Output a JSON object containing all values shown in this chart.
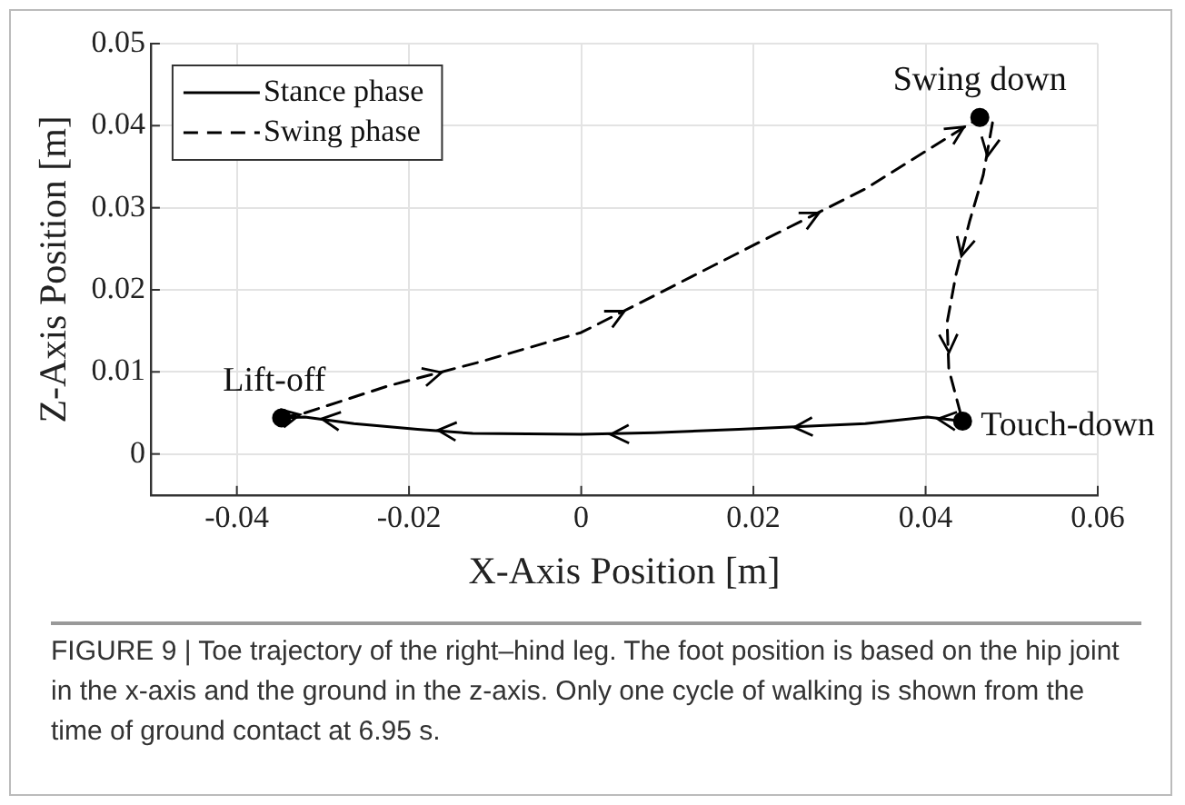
{
  "chart_data": {
    "type": "line",
    "xlabel": "X-Axis Position [m]",
    "ylabel": "Z-Axis Position [m]",
    "xlim": [
      -0.05,
      0.06
    ],
    "xticks": [
      -0.04,
      -0.02,
      0,
      0.02,
      0.04,
      0.06
    ],
    "ylim": [
      -0.005,
      0.05
    ],
    "yticks": [
      0,
      0.01,
      0.02,
      0.03,
      0.04,
      0.05
    ],
    "grid": true,
    "legend": "top left",
    "series": [
      {
        "name": "Stance phase",
        "color": "#000000",
        "line_style": "solid",
        "marker": "none",
        "x": [
          0.0443,
          0.0402,
          0.033,
          0.0183,
          0.0085,
          0,
          -0.0126,
          -0.019,
          -0.0264,
          -0.0321,
          -0.0348
        ],
        "values": [
          0.004,
          0.0045,
          0.0037,
          0.003,
          0.0026,
          0.0024,
          0.0025,
          0.003,
          0.0037,
          0.0045,
          0.0044
        ]
      },
      {
        "name": "Swing phase",
        "color": "#000000",
        "line_style": "dashed",
        "marker": "none",
        "x": [
          -0.0348,
          -0.0321,
          -0.0224,
          -0.0118,
          0,
          0.0085,
          0.0207,
          0.033,
          0.0411,
          0.0463,
          0.0478,
          0.0467,
          0.0451,
          0.0435,
          0.0425,
          0.0427,
          0.0443
        ],
        "values": [
          0.0044,
          0.005,
          0.0083,
          0.0112,
          0.0148,
          0.0193,
          0.0258,
          0.0323,
          0.0376,
          0.041,
          0.0405,
          0.034,
          0.0283,
          0.0217,
          0.016,
          0.0103,
          0.004
        ]
      },
      {
        "type": "scatter",
        "color": "#000000",
        "marker": "circle",
        "x": [
          -0.0348,
          0.0463,
          0.0443
        ],
        "values": [
          0.0044,
          0.041,
          0.004
        ]
      }
    ],
    "annotations": [
      {
        "text": "Lift-off",
        "x": -0.0348,
        "y": 0.0044
      },
      {
        "text": "Swing down",
        "x": 0.0463,
        "y": 0.041
      },
      {
        "text": "Touch-down",
        "x": 0.0443,
        "y": 0.004
      },
      "FIGURE 9 | Toe trajectory of the right–hind leg. The foot position is based on the hip joint in the x-axis and the ground in the z-axis. Only one cycle of walking is shown from the time of ground contact at 6.95 s."
    ]
  }
}
